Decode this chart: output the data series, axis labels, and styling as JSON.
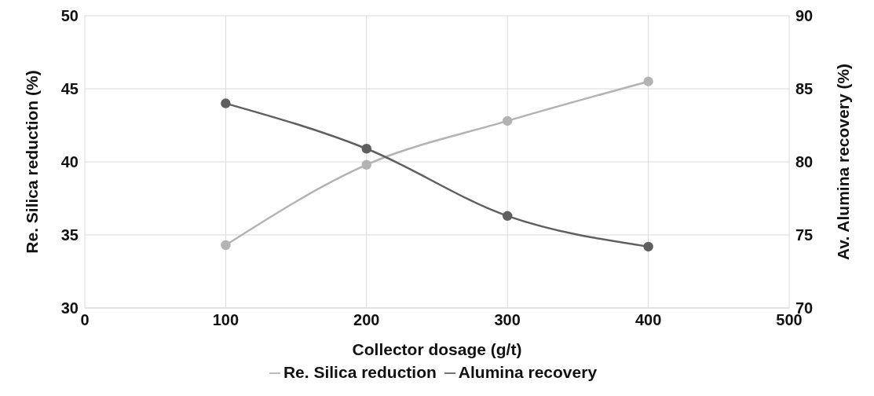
{
  "chart_data": {
    "type": "line",
    "xlabel": "Collector dosage (g/t)",
    "ylabel": "Re. Silica reduction (%)",
    "y2label": "Av. Alumina recovery (%)",
    "x": [
      100,
      200,
      300,
      400
    ],
    "series": [
      {
        "name": "Re. Silica reduction",
        "color": "#b3b3b3",
        "values": [
          34.3,
          39.8,
          42.8,
          45.5
        ]
      },
      {
        "name": "Alumina recovery",
        "color": "#5f5f5f",
        "values": [
          84.0,
          80.9,
          76.3,
          74.2
        ],
        "axis": "y2"
      }
    ],
    "xlim": [
      0,
      500
    ],
    "xticks": [
      0,
      100,
      200,
      300,
      400,
      500
    ],
    "ylim": [
      30,
      50
    ],
    "yticks": [
      30,
      35,
      40,
      45,
      50
    ],
    "y2lim": [
      70,
      90
    ],
    "y2ticks": [
      70,
      75,
      80,
      85,
      90
    ],
    "grid": true,
    "legend": "bottom",
    "marker": "circle",
    "line_style": "solid"
  }
}
